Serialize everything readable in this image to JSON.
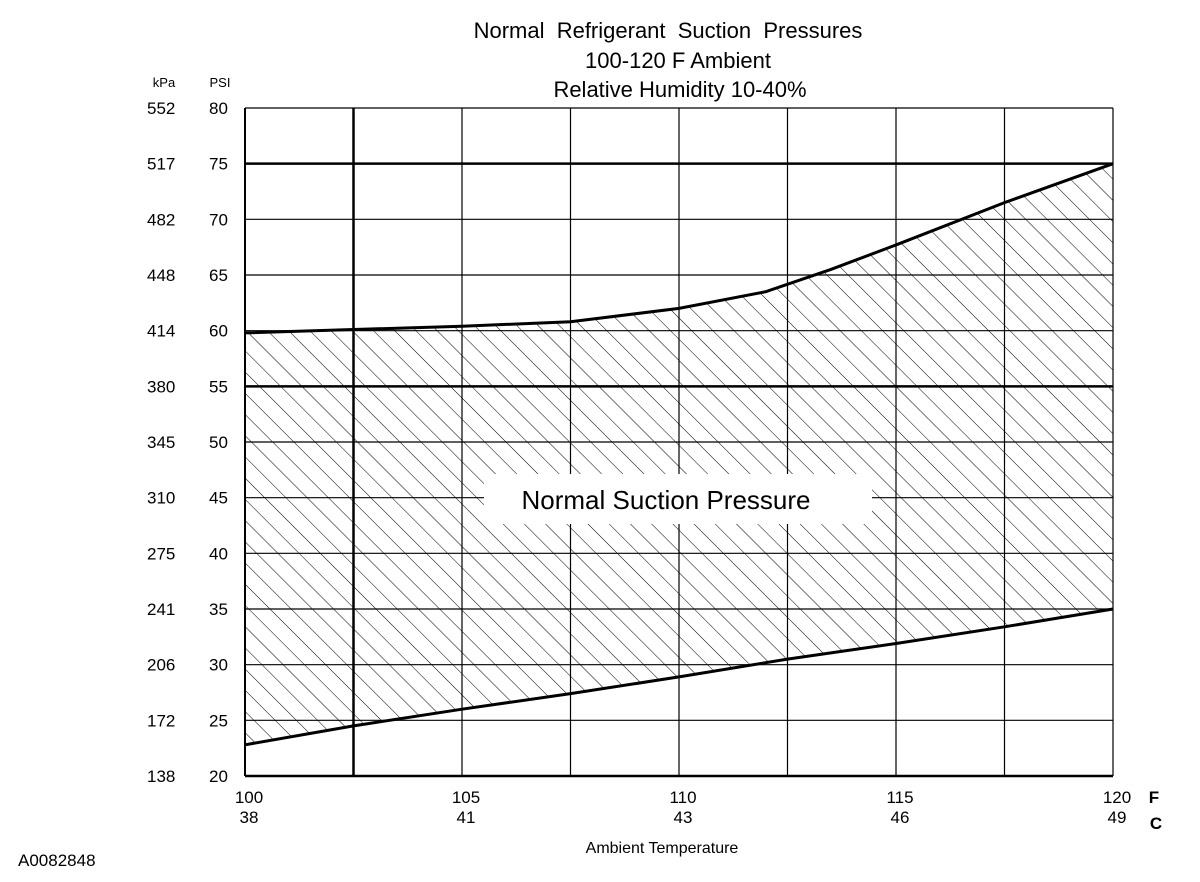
{
  "chart_data": {
    "type": "area",
    "title": [
      "Normal  Refrigerant  Suction  Pressures",
      "100-120 F Ambient",
      "Relative Humidity 10-40%"
    ],
    "xlabel": "Ambient Temperature",
    "x_unit_primary": "F",
    "x_unit_secondary": "C",
    "xlim": [
      100,
      120
    ],
    "x_ticks": [
      {
        "f": 100,
        "f_label": "100",
        "c_label": "38"
      },
      {
        "f": 105,
        "f_label": "105",
        "c_label": "41"
      },
      {
        "f": 110,
        "f_label": "110",
        "c_label": "43"
      },
      {
        "f": 115,
        "f_label": "115",
        "c_label": "46"
      },
      {
        "f": 120,
        "f_label": "120",
        "c_label": "49"
      }
    ],
    "x_minor_lines": [
      102.5,
      107.5,
      112.5,
      117.5
    ],
    "x_bold_lines": [
      102.5
    ],
    "y_unit_primary": "PSI",
    "y_unit_secondary": "kPa",
    "ylim": [
      20,
      80
    ],
    "y_ticks": [
      {
        "psi": 20,
        "psi_label": "20",
        "kpa_label": "138"
      },
      {
        "psi": 25,
        "psi_label": "25",
        "kpa_label": "172"
      },
      {
        "psi": 30,
        "psi_label": "30",
        "kpa_label": "206"
      },
      {
        "psi": 35,
        "psi_label": "35",
        "kpa_label": "241"
      },
      {
        "psi": 40,
        "psi_label": "40",
        "kpa_label": "275"
      },
      {
        "psi": 45,
        "psi_label": "45",
        "kpa_label": "310"
      },
      {
        "psi": 50,
        "psi_label": "50",
        "kpa_label": "345"
      },
      {
        "psi": 55,
        "psi_label": "55",
        "kpa_label": "380"
      },
      {
        "psi": 60,
        "psi_label": "60",
        "kpa_label": "414"
      },
      {
        "psi": 65,
        "psi_label": "65",
        "kpa_label": "448"
      },
      {
        "psi": 70,
        "psi_label": "70",
        "kpa_label": "482"
      },
      {
        "psi": 75,
        "psi_label": "75",
        "kpa_label": "517"
      },
      {
        "psi": 80,
        "psi_label": "80",
        "kpa_label": "552"
      }
    ],
    "y_bold_lines": [
      55,
      75
    ],
    "grid": true,
    "series": [
      {
        "name": "upper",
        "x": [
          100,
          102.5,
          105,
          107.5,
          110,
          112,
          113.5,
          115,
          117.5,
          120
        ],
        "y": [
          59.8,
          60.1,
          60.4,
          60.8,
          62,
          63.5,
          65.5,
          67.7,
          71.5,
          75
        ]
      },
      {
        "name": "lower",
        "x": [
          100,
          102.5,
          105,
          107.5,
          110,
          112.5,
          115,
          117.5,
          120
        ],
        "y": [
          22.8,
          24.5,
          26,
          27.4,
          28.9,
          30.5,
          31.9,
          33.4,
          35
        ]
      }
    ],
    "band_label": "Normal Suction Pressure"
  },
  "figure_id": "A0082848"
}
